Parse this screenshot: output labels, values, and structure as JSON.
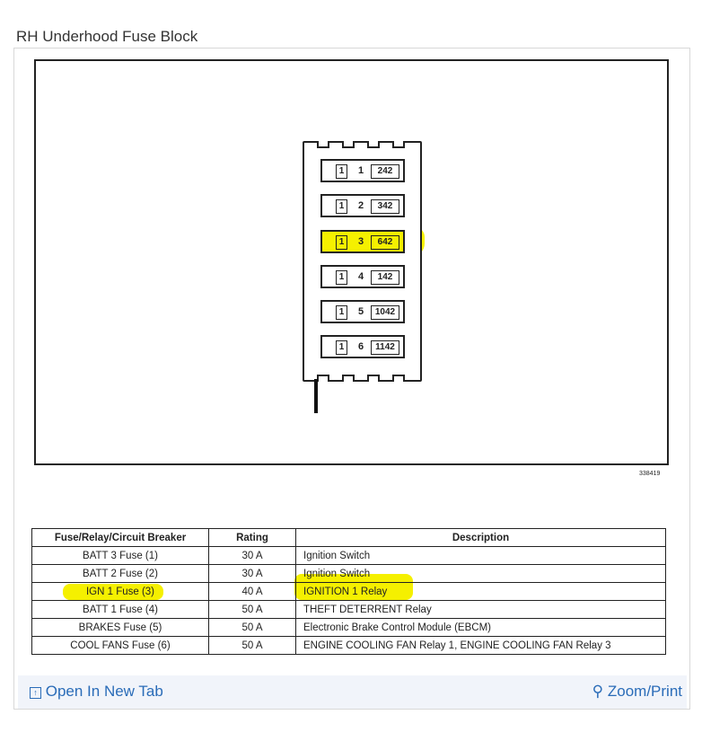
{
  "title": "RH Underhood Fuse Block",
  "figure_number": "338419",
  "fuse_block": {
    "slots": [
      {
        "left": "1",
        "num": "1",
        "circuit": "242",
        "highlighted": false
      },
      {
        "left": "1",
        "num": "2",
        "circuit": "342",
        "highlighted": false
      },
      {
        "left": "1",
        "num": "3",
        "circuit": "642",
        "highlighted": true
      },
      {
        "left": "1",
        "num": "4",
        "circuit": "142",
        "highlighted": false
      },
      {
        "left": "1",
        "num": "5",
        "circuit": "1042",
        "highlighted": false
      },
      {
        "left": "1",
        "num": "6",
        "circuit": "1142",
        "highlighted": false
      }
    ]
  },
  "table": {
    "headers": [
      "Fuse/Relay/Circuit Breaker",
      "Rating",
      "Description"
    ],
    "rows": [
      [
        "BATT 3 Fuse (1)",
        "30 A",
        "Ignition Switch"
      ],
      [
        "BATT 2 Fuse (2)",
        "30 A",
        "Ignition Switch"
      ],
      [
        "IGN 1 Fuse (3)",
        "40 A",
        "IGNITION 1 Relay"
      ],
      [
        "BATT 1 Fuse (4)",
        "50 A",
        "THEFT DETERRENT Relay"
      ],
      [
        "BRAKES Fuse (5)",
        "50 A",
        "Electronic Brake Control Module (EBCM)"
      ],
      [
        "COOL FANS Fuse (6)",
        "50 A",
        "ENGINE COOLING FAN Relay 1, ENGINE COOLING FAN Relay 3"
      ]
    ]
  },
  "highlight_color": "#f5f000",
  "footer": {
    "open_label": "Open In New Tab",
    "zoom_label": "Zoom/Print",
    "link_color": "#2a6cb8"
  }
}
